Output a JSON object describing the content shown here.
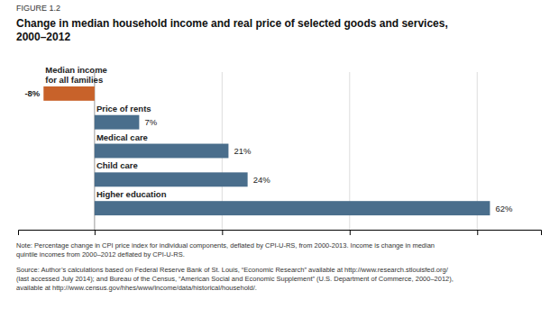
{
  "chart_data": {
    "type": "bar",
    "orientation": "horizontal",
    "title": "Change in median household income and real price of selected goods and services,\n2000–2012",
    "annotations": [
      "FIGURE 1.2",
      "Note: Percentage change in CPI price index for individual components, deflated by CPI-U-RS, from 2000-2013. Income is change in median\nquintile incomes from 2000–2012 deflated by CPI-U-RS.",
      "Source: Author’s calculations based on Federal Reserve Bank of St. Louis, “Economic Research” available at http://www.research.stlouisfed.org/\n(last accessed July 2014); and Bureau of the Census, “American Social and Economic Supplement” (U.S. Department of Commerce, 2000–2012),\navailable at http://www.census.gov/hhes/www/income/data/historical/household/."
    ],
    "categories": [
      "Median income\nfor all families",
      "Price of rents",
      "Medical care",
      "Child care",
      "Higher education"
    ],
    "values": [
      -8,
      7,
      21,
      24,
      62
    ],
    "value_labels": [
      "-8%",
      "7%",
      "21%",
      "24%",
      "62%"
    ],
    "colors": [
      "#c8622a",
      "#4a6e8c",
      "#4a6e8c",
      "#4a6e8c",
      "#4a6e8c"
    ],
    "data_labels": true,
    "xlim": [
      -12,
      70
    ],
    "xticks": [
      0,
      20,
      40,
      60
    ],
    "grid": true,
    "tick_labels": false
  }
}
